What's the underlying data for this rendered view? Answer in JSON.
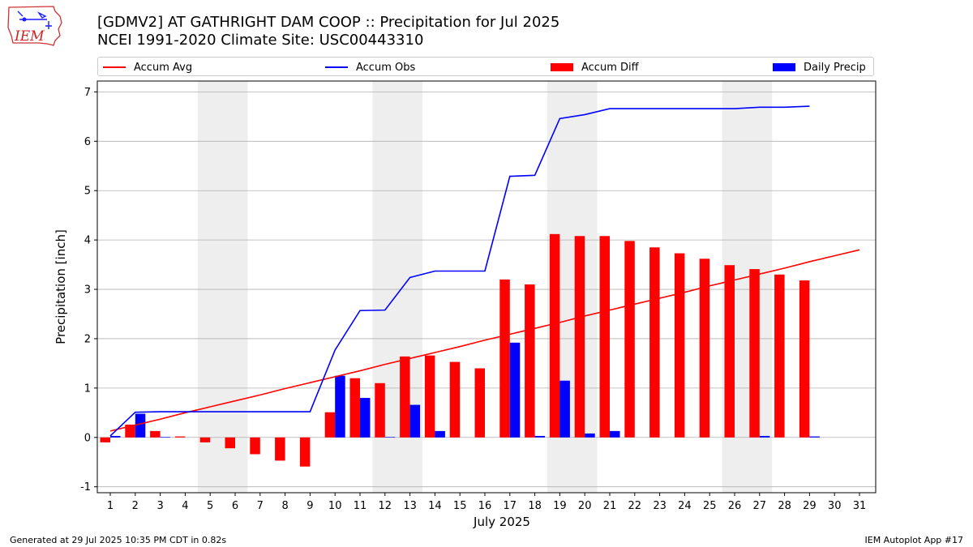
{
  "header": {
    "logo_text": "IEM",
    "title_line1": "[GDMV2] AT GATHRIGHT DAM COOP :: Precipitation for Jul 2025",
    "title_line2": "NCEI 1991-2020 Climate Site: USC00443310"
  },
  "footer": {
    "generated": "Generated at 29 Jul 2025 10:35 PM CDT in 0.82s",
    "app": "IEM Autoplot App #17"
  },
  "colors": {
    "avg": "#ff0000",
    "obs": "#0000ff",
    "diff": "#ff0000",
    "daily": "#0000ff",
    "weekend_shade": "#eeeeee",
    "grid": "#b0b0b0"
  },
  "chart_data": {
    "type": "bar",
    "xlabel": "July 2025",
    "ylabel": "Precipitation [inch]",
    "ylim": [
      -1.12,
      7.22
    ],
    "yticks": [
      -1,
      0,
      1,
      2,
      3,
      4,
      5,
      6,
      7
    ],
    "grid": true,
    "legend_placement": "top",
    "legend": [
      "Accum Avg",
      "Accum Obs",
      "Accum Diff",
      "Daily Precip"
    ],
    "days": [
      1,
      2,
      3,
      4,
      5,
      6,
      7,
      8,
      9,
      10,
      11,
      12,
      13,
      14,
      15,
      16,
      17,
      18,
      19,
      20,
      21,
      22,
      23,
      24,
      25,
      26,
      27,
      28,
      29,
      30,
      31
    ],
    "weekend_shading": [
      [
        5,
        6
      ],
      [
        12,
        13
      ],
      [
        19,
        20
      ],
      [
        26,
        27
      ]
    ],
    "series": [
      {
        "name": "Accum Avg",
        "kind": "line",
        "values": [
          0.13,
          0.25,
          0.37,
          0.5,
          0.62,
          0.74,
          0.86,
          0.99,
          1.11,
          1.23,
          1.35,
          1.48,
          1.6,
          1.72,
          1.84,
          1.97,
          2.09,
          2.21,
          2.33,
          2.46,
          2.58,
          2.7,
          2.82,
          2.94,
          3.07,
          3.19,
          3.31,
          3.43,
          3.56,
          3.68,
          3.8
        ]
      },
      {
        "name": "Accum Obs",
        "kind": "line",
        "values": [
          0.03,
          0.51,
          0.52,
          0.52,
          0.52,
          0.52,
          0.52,
          0.52,
          0.52,
          1.77,
          2.57,
          2.58,
          3.24,
          3.37,
          3.37,
          3.37,
          5.29,
          5.31,
          6.46,
          6.54,
          6.66,
          6.66,
          6.66,
          6.66,
          6.66,
          6.66,
          6.69,
          6.69,
          6.71
        ]
      },
      {
        "name": "Accum Diff",
        "kind": "bar",
        "values": [
          -0.1,
          0.26,
          0.13,
          0.02,
          -0.1,
          -0.22,
          -0.34,
          -0.47,
          -0.59,
          0.51,
          1.2,
          1.1,
          1.64,
          1.66,
          1.53,
          1.4,
          3.2,
          3.1,
          4.12,
          4.08,
          4.08,
          3.98,
          3.85,
          3.73,
          3.62,
          3.49,
          3.41,
          3.3,
          3.18
        ]
      },
      {
        "name": "Daily Precip",
        "kind": "bar",
        "values": [
          0.03,
          0.48,
          0.01,
          0.0,
          0.0,
          0.0,
          0.0,
          0.0,
          0.0,
          1.25,
          0.8,
          0.01,
          0.66,
          0.13,
          0.0,
          0.0,
          1.92,
          0.03,
          1.15,
          0.08,
          0.13,
          0.0,
          0.0,
          0.0,
          0.0,
          0.0,
          0.03,
          0.0,
          0.02
        ]
      }
    ]
  }
}
